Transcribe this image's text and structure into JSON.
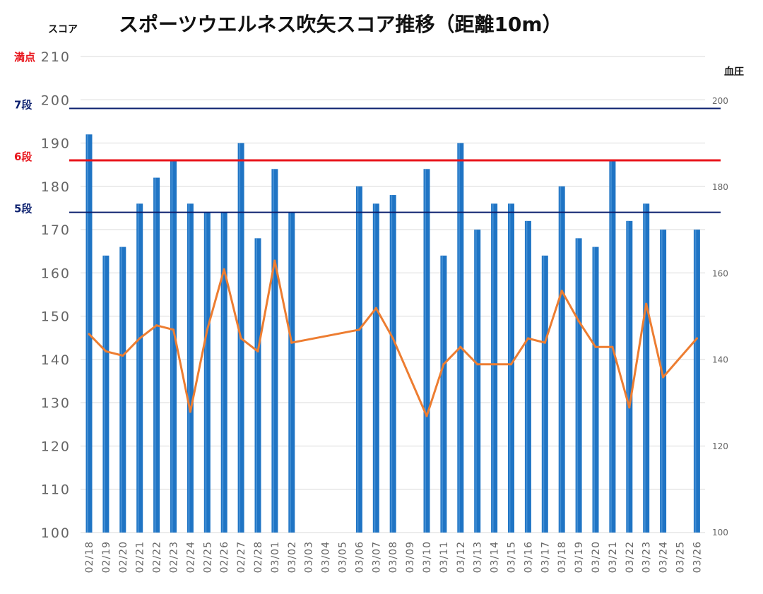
{
  "chart_data": {
    "type": "bar",
    "title": "スポーツウエルネス吹矢スコア推移（距離10m）",
    "ylabel": "スコア",
    "y2label": "血圧",
    "ylim": [
      100,
      210
    ],
    "y2lim": [
      100,
      210
    ],
    "y_ticks": [
      100,
      110,
      120,
      130,
      140,
      150,
      160,
      170,
      180,
      190,
      200,
      210
    ],
    "y2_ticks": [
      100,
      120,
      140,
      160,
      180,
      200
    ],
    "grid": true,
    "categories": [
      "02/18",
      "02/19",
      "02/20",
      "02/21",
      "02/22",
      "02/23",
      "02/24",
      "02/25",
      "02/26",
      "02/27",
      "02/28",
      "03/01",
      "03/02",
      "03/03",
      "03/04",
      "03/05",
      "03/06",
      "03/07",
      "03/08",
      "03/09",
      "03/10",
      "03/11",
      "03/12",
      "03/13",
      "03/14",
      "03/15",
      "03/16",
      "03/17",
      "03/18",
      "03/19",
      "03/20",
      "03/21",
      "03/22",
      "03/23",
      "03/24",
      "03/25",
      "03/26"
    ],
    "series": [
      {
        "kind": "bar",
        "axis": "left",
        "color": "#1f74c4",
        "values": [
          192,
          164,
          166,
          176,
          182,
          186,
          176,
          174,
          174,
          190,
          168,
          184,
          174,
          null,
          null,
          null,
          180,
          176,
          178,
          null,
          184,
          164,
          190,
          170,
          176,
          176,
          172,
          164,
          180,
          168,
          166,
          186,
          172,
          176,
          170,
          null,
          170
        ]
      },
      {
        "kind": "line",
        "axis": "right",
        "color": "#ed7d31",
        "values": [
          146,
          142,
          141,
          145,
          148,
          147,
          128,
          147,
          161,
          145,
          142,
          163,
          144,
          null,
          null,
          null,
          147,
          152,
          145,
          null,
          127,
          139,
          143,
          139,
          139,
          139,
          145,
          144,
          156,
          149,
          143,
          143,
          129,
          153,
          136,
          null,
          145
        ]
      }
    ],
    "reference_lines": [
      {
        "label": "満点",
        "value": 210,
        "color": "#e8141b",
        "show_line": false
      },
      {
        "label": "7段",
        "value": 198,
        "color": "#0b1f6e",
        "show_line": true
      },
      {
        "label": "6段",
        "value": 186,
        "color": "#e8141b",
        "show_line": true
      },
      {
        "label": "5段",
        "value": 174,
        "color": "#0b1f6e",
        "show_line": true
      }
    ]
  }
}
